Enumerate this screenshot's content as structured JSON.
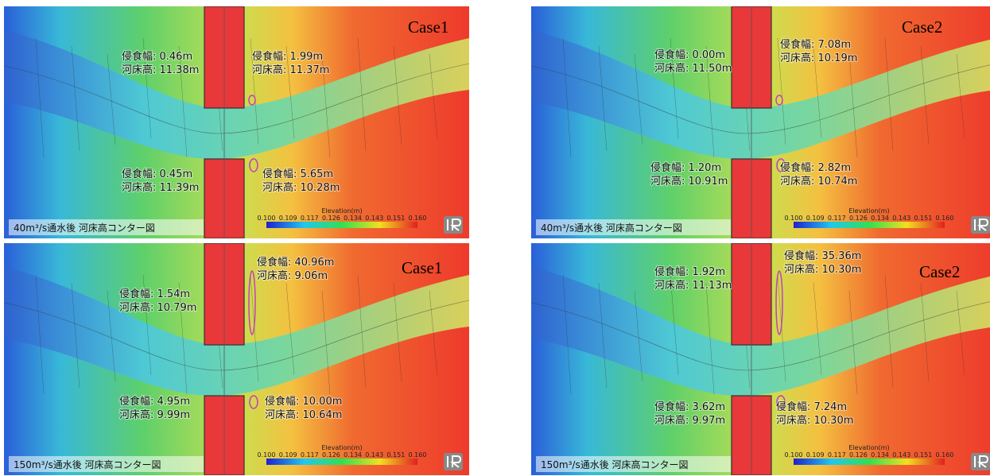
{
  "panels": [
    {
      "case": "Case1",
      "caption": "40m³/s通水後 河床高コンター図",
      "colorbar": {
        "title": "Elevation(m)",
        "ticks": [
          "0.100",
          "0.109",
          "0.117",
          "0.126",
          "0.134",
          "0.143",
          "0.151",
          "0.160"
        ]
      },
      "annotations": [
        [
          "侵食幅: 0.46m",
          "河床高: 11.38m"
        ],
        [
          "侵食幅: 1.99m",
          "河床高: 11.37m"
        ],
        [
          "侵食幅: 0.45m",
          "河床高: 11.39m"
        ],
        [
          "侵食幅: 5.65m",
          "河床高: 10.28m"
        ]
      ]
    },
    {
      "case": "Case2",
      "caption": "40m³/s通水後 河床高コンター図",
      "colorbar": {
        "title": "Elevation(m)",
        "ticks": [
          "0.100",
          "0.109",
          "0.117",
          "0.126",
          "0.134",
          "0.143",
          "0.151",
          "0.160"
        ]
      },
      "annotations": [
        [
          "侵食幅: 0.00m",
          "河床高: 11.50m"
        ],
        [
          "侵食幅: 7.08m",
          "河床高: 10.19m"
        ],
        [
          "侵食幅: 1.20m",
          "河床高: 10.91m"
        ],
        [
          "侵食幅: 2.82m",
          "河床高: 10.74m"
        ]
      ]
    },
    {
      "case": "Case1",
      "caption": "150m³/s通水後 河床高コンター図",
      "colorbar": {
        "title": "Elevation(m)",
        "ticks": [
          "0.100",
          "0.109",
          "0.117",
          "0.126",
          "0.134",
          "0.143",
          "0.151",
          "0.160"
        ]
      },
      "annotations": [
        [
          "侵食幅: 1.54m",
          "河床高: 10.79m"
        ],
        [
          "侵食幅: 40.96m",
          "河床高: 9.06m"
        ],
        [
          "侵食幅: 4.95m",
          "河床高: 9.99m"
        ],
        [
          "侵食幅: 10.00m",
          "河床高: 10.64m"
        ]
      ]
    },
    {
      "case": "Case2",
      "caption": "150m³/s通水後 河床高コンター図",
      "colorbar": {
        "title": "Elevation(m)",
        "ticks": [
          "0.100",
          "0.109",
          "0.117",
          "0.126",
          "0.134",
          "0.143",
          "0.151",
          "0.160"
        ]
      },
      "annotations": [
        [
          "侵食幅: 1.92m",
          "河床高: 11.13m"
        ],
        [
          "侵食幅: 35.36m",
          "河床高: 10.30m"
        ],
        [
          "侵食幅: 3.62m",
          "河床高: 9.97m"
        ],
        [
          "侵食幅: 7.24m",
          "河床高: 10.30m"
        ]
      ]
    }
  ]
}
